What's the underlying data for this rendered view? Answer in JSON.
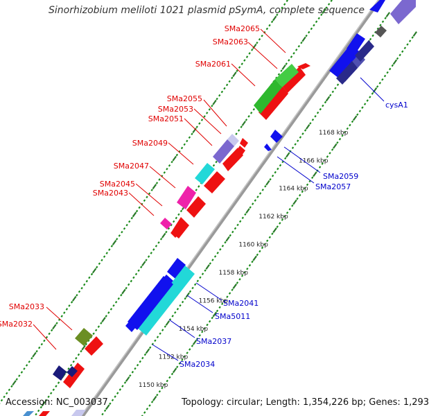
{
  "title": "Sinorhizobium meliloti 1021 plasmid pSymA, complete sequence",
  "footer": {
    "accession": "Accession: NC_003037",
    "topology": "Topology: circular; Length: 1,354,226 bp; Genes: 1,293"
  },
  "colors": {
    "backbone": "#9a9a9a",
    "tick_major": "#2a7a2a",
    "tick_minor": "#1a8a1a",
    "label_reverse": "#e00000",
    "label_forward": "#0000cc",
    "arrow_red": "#ee1111",
    "arrow_green": "#44cc44",
    "arrow_blue": "#1111ee",
    "arrow_cyan": "#22d8d8",
    "arrow_magenta": "#ee22aa",
    "arrow_lavender": "#7b68cf",
    "arrow_navy": "#1a1a7a",
    "arrow_olive": "#6b8e23"
  },
  "scale_ticks": [
    {
      "kbp": 1150,
      "label": "1150 kbp"
    },
    {
      "kbp": 1152,
      "label": "1152 kbp"
    },
    {
      "kbp": 1154,
      "label": "1154 kbp"
    },
    {
      "kbp": 1156,
      "label": "1156 kbp"
    },
    {
      "kbp": 1158,
      "label": "1158 kbp"
    },
    {
      "kbp": 1160,
      "label": "1160 kbp"
    },
    {
      "kbp": 1162,
      "label": "1162 kbp"
    },
    {
      "kbp": 1164,
      "label": "1164 kbp"
    },
    {
      "kbp": 1166,
      "label": "1166 kbp"
    },
    {
      "kbp": 1168,
      "label": "1168 kbp"
    }
  ],
  "reverse_labels": [
    "SMa2065",
    "SMa2063",
    "SMa2061",
    "SMa2055",
    "SMa2053",
    "SMa2051",
    "SMa2049",
    "SMa2047",
    "SMa2045",
    "SMa2043",
    "SMa2033",
    "SMa2032"
  ],
  "forward_labels": [
    "cysA1",
    "SMa2059",
    "SMa2057",
    "SMa2041",
    "SMa5011",
    "SMa2037",
    "SMa2034"
  ],
  "features": [
    {
      "color": "arrow_red",
      "track": 1,
      "dir": -1
    },
    {
      "color": "arrow_green",
      "track": 2,
      "dir": -1
    },
    {
      "color": "arrow_red",
      "track": 1,
      "dir": -1
    },
    {
      "color": "arrow_lavender",
      "track": 2,
      "dir": -1
    },
    {
      "color": "arrow_cyan",
      "track": 2,
      "dir": -1
    },
    {
      "color": "arrow_red",
      "track": 1,
      "dir": -1
    },
    {
      "color": "arrow_magenta",
      "track": 2,
      "dir": -1
    },
    {
      "color": "arrow_red",
      "track": 1,
      "dir": -1
    },
    {
      "color": "arrow_blue",
      "track": 3,
      "dir": 1
    },
    {
      "color": "arrow_cyan",
      "track": 3,
      "dir": 1
    },
    {
      "color": "arrow_navy",
      "track": 2,
      "dir": -1
    },
    {
      "color": "arrow_olive",
      "track": 2,
      "dir": -1
    },
    {
      "color": "arrow_lavender",
      "track": 4,
      "dir": 1
    }
  ]
}
